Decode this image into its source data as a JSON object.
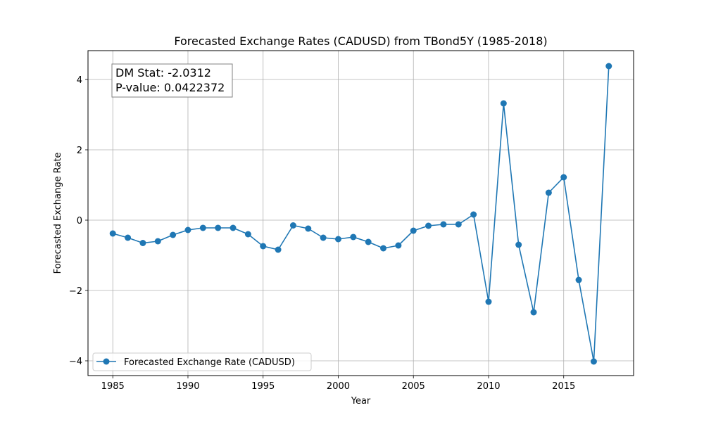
{
  "chart_data": {
    "type": "line",
    "title": "Forecasted Exchange Rates (CADUSD) from TBond5Y (1985-2018)",
    "xlabel": "Year",
    "ylabel": "Forecasted Exchange Rate",
    "xlim": [
      1983.35,
      2019.65
    ],
    "ylim": [
      -4.42,
      4.82
    ],
    "xticks": [
      1985,
      1990,
      1995,
      2000,
      2005,
      2010,
      2015
    ],
    "yticks": [
      -4,
      -2,
      0,
      2,
      4
    ],
    "grid": true,
    "legend_position": "lower-left",
    "annotation": {
      "line1": "DM Stat: -2.0312",
      "line2": "P-value: 0.0422372"
    },
    "series": [
      {
        "name": "Forecasted Exchange Rate (CADUSD)",
        "color": "#1f77b4",
        "marker": "circle",
        "x": [
          1985,
          1986,
          1987,
          1988,
          1989,
          1990,
          1991,
          1992,
          1993,
          1994,
          1995,
          1996,
          1997,
          1998,
          1999,
          2000,
          2001,
          2002,
          2003,
          2004,
          2005,
          2006,
          2007,
          2008,
          2009,
          2010,
          2011,
          2012,
          2013,
          2014,
          2015,
          2016,
          2017,
          2018
        ],
        "y": [
          -0.38,
          -0.5,
          -0.65,
          -0.6,
          -0.42,
          -0.28,
          -0.22,
          -0.22,
          -0.22,
          -0.4,
          -0.74,
          -0.84,
          -0.15,
          -0.24,
          -0.5,
          -0.54,
          -0.48,
          -0.62,
          -0.8,
          -0.72,
          -0.3,
          -0.16,
          -0.12,
          -0.12,
          0.16,
          -2.32,
          3.32,
          -0.7,
          -2.62,
          0.78,
          1.22,
          -1.7,
          -4.02,
          4.38
        ]
      }
    ]
  }
}
